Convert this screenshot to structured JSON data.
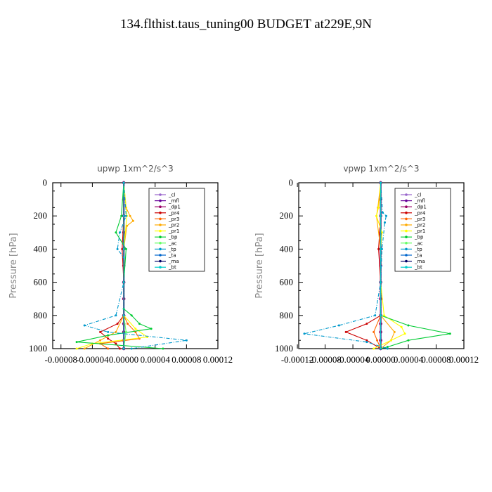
{
  "figure": {
    "title": "134.flthist.taus_tuning00  BUDGET at229E,9N"
  },
  "chart_data": [
    {
      "type": "line",
      "title": "upwp   1xm^2/s^3",
      "ylabel": "Pressure [hPa]",
      "xlabel": "",
      "ylim": [
        1000,
        0
      ],
      "xlim": [
        -0.00012,
        0.00012
      ],
      "xticks": [
        "-0.00008",
        "-0.00004",
        "0.00000",
        "0.00004",
        "0.00008",
        "0.00012"
      ],
      "xtick_values": [
        -8e-05,
        -4e-05,
        0,
        4e-05,
        8e-05,
        0.00012
      ],
      "yticks": [
        "0",
        "200",
        "400",
        "600",
        "800",
        "1000"
      ],
      "ytick_values": [
        0,
        200,
        400,
        600,
        800,
        1000
      ],
      "legend_position": "top-right",
      "series": [
        {
          "name": "_cl",
          "color": "#9966cc",
          "y": [
            0,
            100,
            200,
            300,
            400,
            500,
            600,
            700,
            800,
            850,
            900,
            950,
            1000
          ],
          "x": [
            0,
            0,
            0,
            0,
            0,
            0,
            0,
            0,
            0,
            0,
            0,
            0,
            0
          ]
        },
        {
          "name": "_mfl",
          "color": "#660099",
          "y": [
            0,
            100,
            200,
            300,
            400,
            500,
            600,
            700,
            800,
            850,
            900,
            950,
            1000
          ],
          "x": [
            0,
            0,
            0,
            0,
            0,
            0,
            0,
            0,
            0,
            0,
            0,
            0,
            0
          ]
        },
        {
          "name": "_dp1",
          "color": "#990066",
          "y": [
            0,
            100,
            200,
            300,
            400,
            500,
            600,
            700,
            800,
            850,
            900,
            950,
            1000
          ],
          "x": [
            0,
            0,
            0,
            0,
            0,
            0,
            0,
            0,
            0,
            0,
            0,
            0,
            0
          ]
        },
        {
          "name": "_pr4",
          "color": "#cc0000",
          "y": [
            0,
            200,
            400,
            600,
            800,
            850,
            900,
            940,
            970,
            1000
          ],
          "x": [
            0,
            0,
            -2e-06,
            0,
            0,
            -8e-06,
            -3e-05,
            -2e-05,
            -1e-05,
            -5e-06
          ]
        },
        {
          "name": "_pr3",
          "color": "#ff6600",
          "y": [
            0,
            200,
            400,
            600,
            800,
            850,
            900,
            940,
            970,
            1000
          ],
          "x": [
            0,
            0,
            0,
            0,
            0,
            5e-06,
            1.5e-05,
            2e-05,
            -3e-05,
            -2e-05
          ]
        },
        {
          "name": "_pr2",
          "color": "#ffaa00",
          "y": [
            0,
            150,
            200,
            230,
            260,
            400,
            600,
            800,
            900,
            950,
            1000
          ],
          "x": [
            0,
            3e-06,
            8e-06,
            1.2e-05,
            4e-06,
            0,
            0,
            0,
            -1e-05,
            -3e-05,
            -5e-05
          ]
        },
        {
          "name": "_pr1",
          "color": "#ffff00",
          "y": [
            0,
            200,
            400,
            600,
            800,
            880,
            930,
            970,
            1000
          ],
          "x": [
            0,
            4e-06,
            0,
            0,
            0,
            1.5e-05,
            3e-05,
            -4e-05,
            -6e-05
          ]
        },
        {
          "name": "_bp",
          "color": "#00cc33",
          "y": [
            0,
            200,
            300,
            400,
            600,
            760,
            800,
            850,
            880,
            920,
            960,
            1000
          ],
          "x": [
            0,
            -3e-06,
            -1e-05,
            3e-06,
            0,
            0,
            1e-05,
            2e-05,
            3.5e-05,
            -2e-05,
            -6e-05,
            5e-05
          ]
        },
        {
          "name": "_ac",
          "color": "#66ff66",
          "y": [
            0,
            200,
            400,
            600,
            800,
            900,
            1000
          ],
          "x": [
            0,
            0,
            0,
            0,
            0,
            3e-06,
            0
          ]
        },
        {
          "name": "_tp",
          "color": "#0099cc",
          "y": [
            0,
            200,
            300,
            400,
            450,
            600,
            800,
            860,
            900,
            950,
            1000
          ],
          "x": [
            0,
            3e-06,
            -5e-06,
            -8e-06,
            0,
            0,
            -1e-05,
            -5e-05,
            -2e-05,
            8e-05,
            1e-05
          ]
        },
        {
          "name": "_ta",
          "color": "#0066cc",
          "y": [
            0,
            200,
            400,
            600,
            800,
            1000
          ],
          "x": [
            0,
            0,
            0,
            0,
            0,
            0
          ]
        },
        {
          "name": "_ma",
          "color": "#000066",
          "y": [
            0,
            200,
            400,
            600,
            800,
            1000
          ],
          "x": [
            0,
            0,
            0,
            0,
            0,
            0
          ]
        },
        {
          "name": "_bt",
          "color": "#00cccc",
          "y": [
            0,
            200,
            400,
            600,
            800,
            1000
          ],
          "x": [
            0,
            0,
            0,
            0,
            0,
            0
          ]
        }
      ]
    },
    {
      "type": "line",
      "title": "vpwp   1xm^2/s^3",
      "ylabel": "Pressure [hPa]",
      "xlabel": "",
      "ylim": [
        1000,
        0
      ],
      "xlim": [
        -0.00012,
        0.00012
      ],
      "xticks": [
        "-0.00012",
        "-0.00008",
        "-0.00004",
        "0.00000",
        "0.00004",
        "0.00008",
        "0.00012"
      ],
      "xtick_values": [
        -0.00012,
        -8e-05,
        -4e-05,
        0,
        4e-05,
        8e-05,
        0.00012
      ],
      "yticks": [
        "0",
        "200",
        "400",
        "600",
        "800",
        "1000"
      ],
      "ytick_values": [
        0,
        200,
        400,
        600,
        800,
        1000
      ],
      "legend_position": "top-right",
      "series": [
        {
          "name": "_cl",
          "color": "#9966cc",
          "y": [
            0,
            100,
            200,
            300,
            400,
            500,
            600,
            700,
            800,
            850,
            900,
            950,
            1000
          ],
          "x": [
            0,
            0,
            0,
            0,
            0,
            0,
            0,
            0,
            0,
            0,
            0,
            0,
            0
          ]
        },
        {
          "name": "_mfl",
          "color": "#660099",
          "y": [
            0,
            100,
            200,
            300,
            400,
            500,
            600,
            700,
            800,
            850,
            900,
            950,
            1000
          ],
          "x": [
            0,
            0,
            0,
            0,
            0,
            0,
            0,
            0,
            0,
            0,
            0,
            0,
            0
          ]
        },
        {
          "name": "_dp1",
          "color": "#990066",
          "y": [
            0,
            100,
            200,
            300,
            400,
            500,
            600,
            700,
            800,
            850,
            900,
            950,
            1000
          ],
          "x": [
            0,
            0,
            0,
            0,
            0,
            0,
            0,
            0,
            0,
            0,
            0,
            0,
            0
          ]
        },
        {
          "name": "_pr4",
          "color": "#cc0000",
          "y": [
            0,
            200,
            400,
            600,
            800,
            850,
            900,
            950,
            1000
          ],
          "x": [
            0,
            0,
            -3e-06,
            0,
            0,
            -2e-05,
            -5e-05,
            -2e-05,
            0
          ]
        },
        {
          "name": "_pr3",
          "color": "#ff6600",
          "y": [
            0,
            200,
            400,
            600,
            800,
            900,
            950,
            1000
          ],
          "x": [
            0,
            0,
            0,
            0,
            0,
            -1e-05,
            -5e-06,
            0
          ]
        },
        {
          "name": "_pr2",
          "color": "#ffaa00",
          "y": [
            0,
            150,
            200,
            400,
            600,
            800,
            900,
            950,
            1000
          ],
          "x": [
            0,
            -4e-06,
            -6e-06,
            0,
            0,
            0,
            2e-05,
            1.5e-05,
            0
          ]
        },
        {
          "name": "_pr1",
          "color": "#ffff00",
          "y": [
            0,
            150,
            200,
            300,
            400,
            600,
            800,
            870,
            910,
            950,
            1000
          ],
          "x": [
            0,
            -3e-06,
            -6e-06,
            2e-06,
            0,
            0,
            5e-06,
            3e-05,
            3.5e-05,
            1.5e-05,
            -1e-05
          ]
        },
        {
          "name": "_bp",
          "color": "#00cc33",
          "y": [
            0,
            200,
            400,
            600,
            800,
            860,
            910,
            950,
            990,
            1000
          ],
          "x": [
            0,
            0,
            0,
            0,
            0,
            4e-05,
            0.0001,
            4e-05,
            1e-05,
            0
          ]
        },
        {
          "name": "_ac",
          "color": "#66ff66",
          "y": [
            0,
            200,
            400,
            600,
            800,
            1000
          ],
          "x": [
            0,
            0,
            0,
            0,
            0,
            0
          ]
        },
        {
          "name": "_tp",
          "color": "#0099cc",
          "y": [
            0,
            180,
            200,
            240,
            400,
            600,
            800,
            860,
            910,
            960,
            1000
          ],
          "x": [
            0,
            3e-06,
            8e-06,
            6e-06,
            2e-06,
            0,
            -8e-06,
            -6e-05,
            -0.00011,
            -2e-05,
            1e-05
          ]
        },
        {
          "name": "_ta",
          "color": "#0066cc",
          "y": [
            0,
            200,
            400,
            600,
            800,
            1000
          ],
          "x": [
            0,
            0,
            0,
            0,
            0,
            0
          ]
        },
        {
          "name": "_ma",
          "color": "#000066",
          "y": [
            0,
            200,
            400,
            600,
            800,
            1000
          ],
          "x": [
            0,
            0,
            0,
            0,
            0,
            0
          ]
        },
        {
          "name": "_bt",
          "color": "#00cccc",
          "y": [
            0,
            200,
            400,
            600,
            800,
            1000
          ],
          "x": [
            0,
            0,
            0,
            0,
            0,
            0
          ]
        }
      ]
    }
  ]
}
